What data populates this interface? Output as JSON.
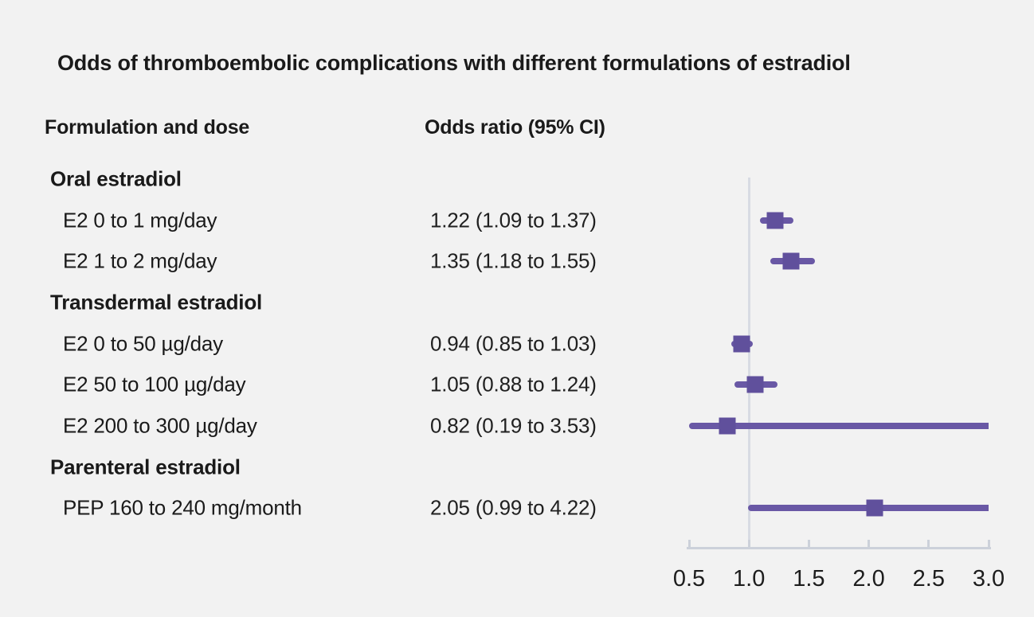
{
  "title": "Odds of thromboembolic complications with different formulations of estradiol",
  "columns": {
    "formulation": "Formulation and dose",
    "odds_ratio": "Odds ratio (95% CI)"
  },
  "chart_data": {
    "type": "forest",
    "title": "Odds of thromboembolic complications with different formulations of estradiol",
    "x_axis": {
      "ticks": [
        0.5,
        1.0,
        1.5,
        2.0,
        2.5,
        3.0
      ],
      "tick_labels": [
        "0.5",
        "1.0",
        "1.5",
        "2.0",
        "2.5",
        "3.0"
      ],
      "xlim": [
        0.5,
        3.0
      ],
      "reference_line": 1.0
    },
    "rows": [
      {
        "kind": "section",
        "label": "Oral estradiol"
      },
      {
        "kind": "item",
        "label": "E2 0 to 1 mg/day",
        "display": "1.22 (1.09 to 1.37)",
        "or": 1.22,
        "lo": 1.09,
        "hi": 1.37
      },
      {
        "kind": "item",
        "label": "E2 1 to 2 mg/day",
        "display": "1.35 (1.18 to 1.55)",
        "or": 1.35,
        "lo": 1.18,
        "hi": 1.55
      },
      {
        "kind": "section",
        "label": "Transdermal estradiol"
      },
      {
        "kind": "item",
        "label": "E2 0 to 50 µg/day",
        "display": "0.94 (0.85 to 1.03)",
        "or": 0.94,
        "lo": 0.85,
        "hi": 1.03
      },
      {
        "kind": "item",
        "label": "E2 50 to 100 µg/day",
        "display": "1.05 (0.88 to 1.24)",
        "or": 1.05,
        "lo": 0.88,
        "hi": 1.24
      },
      {
        "kind": "item",
        "label": "E2 200 to 300 µg/day",
        "display": "0.82 (0.19 to 3.53)",
        "or": 0.82,
        "lo": 0.19,
        "hi": 3.53
      },
      {
        "kind": "section",
        "label": "Parenteral estradiol"
      },
      {
        "kind": "item",
        "label": "PEP 160 to 240 mg/month",
        "display": "2.05 (0.99 to 4.22)",
        "or": 2.05,
        "lo": 0.99,
        "hi": 4.22
      }
    ],
    "colors": {
      "marker": "#60509c",
      "ci": "#6958a5",
      "axis": "#ccd1da",
      "reference": "#d8dbe3",
      "background": "#f2f2f2",
      "text": "#1a1a1a"
    }
  }
}
